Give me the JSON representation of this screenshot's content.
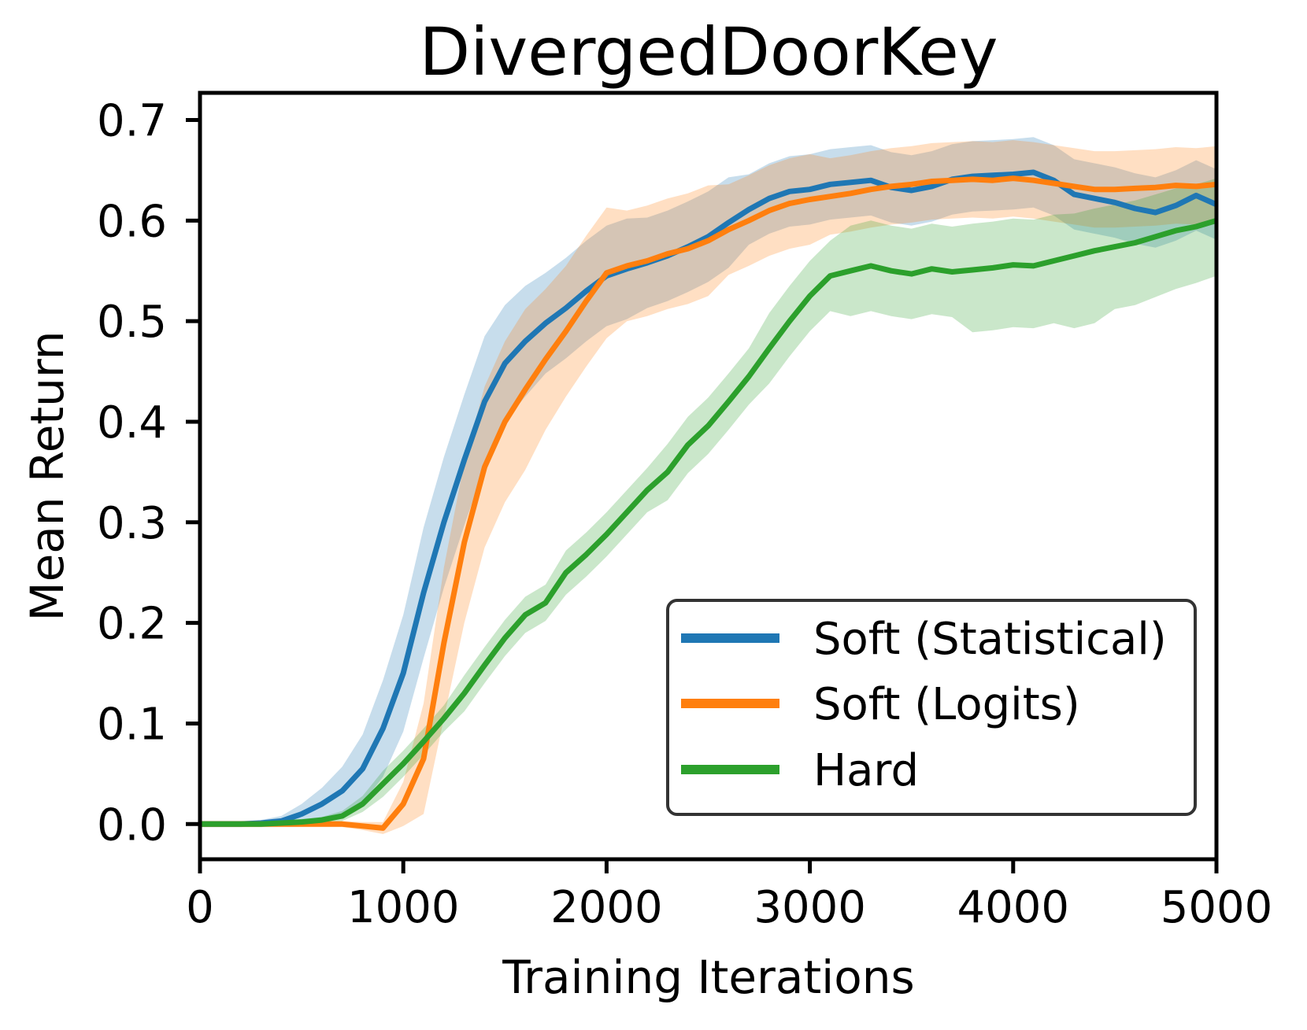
{
  "chart_data": {
    "type": "line",
    "title": "DivergedDoorKey",
    "xlabel": "Training Iterations",
    "ylabel": "Mean Return",
    "xlim": [
      0,
      5000
    ],
    "ylim": [
      -0.035,
      0.727
    ],
    "grid": false,
    "legend_position": "lower right",
    "band_alpha": 0.25,
    "xticks": {
      "values": [
        0,
        1000,
        2000,
        3000,
        4000,
        5000
      ],
      "labels": [
        "0",
        "1000",
        "2000",
        "3000",
        "4000",
        "5000"
      ]
    },
    "yticks": {
      "values": [
        0.0,
        0.1,
        0.2,
        0.3,
        0.4,
        0.5,
        0.6,
        0.7
      ],
      "labels": [
        "0.0",
        "0.1",
        "0.2",
        "0.3",
        "0.4",
        "0.5",
        "0.6",
        "0.7"
      ]
    },
    "x": [
      0,
      100,
      200,
      300,
      400,
      500,
      600,
      700,
      800,
      900,
      1000,
      1100,
      1200,
      1300,
      1400,
      1500,
      1600,
      1700,
      1800,
      1900,
      2000,
      2100,
      2200,
      2300,
      2400,
      2500,
      2600,
      2700,
      2800,
      2900,
      3000,
      3100,
      3200,
      3300,
      3400,
      3500,
      3600,
      3700,
      3800,
      3900,
      4000,
      4100,
      4200,
      4300,
      4400,
      4500,
      4600,
      4700,
      4800,
      4900,
      5000
    ],
    "series": [
      {
        "name": "Soft (Statistical)",
        "color": "#1f77b4",
        "values": [
          0.0,
          0.0,
          0.0,
          0.001,
          0.003,
          0.01,
          0.02,
          0.033,
          0.055,
          0.095,
          0.15,
          0.23,
          0.3,
          0.362,
          0.42,
          0.458,
          0.48,
          0.498,
          0.513,
          0.53,
          0.545,
          0.552,
          0.558,
          0.565,
          0.574,
          0.584,
          0.598,
          0.611,
          0.622,
          0.629,
          0.631,
          0.636,
          0.638,
          0.64,
          0.633,
          0.63,
          0.634,
          0.641,
          0.644,
          0.645,
          0.646,
          0.648,
          0.64,
          0.626,
          0.622,
          0.618,
          0.612,
          0.608,
          0.615,
          0.625,
          0.616
        ],
        "band_lower": [
          -0.003,
          -0.003,
          -0.003,
          -0.002,
          -0.002,
          0.0,
          0.004,
          0.009,
          0.021,
          0.047,
          0.092,
          0.165,
          0.235,
          0.297,
          0.355,
          0.4,
          0.425,
          0.448,
          0.463,
          0.48,
          0.495,
          0.502,
          0.513,
          0.52,
          0.529,
          0.539,
          0.553,
          0.576,
          0.587,
          0.594,
          0.596,
          0.601,
          0.603,
          0.605,
          0.598,
          0.595,
          0.599,
          0.606,
          0.609,
          0.61,
          0.611,
          0.613,
          0.605,
          0.591,
          0.587,
          0.583,
          0.577,
          0.573,
          0.58,
          0.59,
          0.581
        ],
        "band_upper": [
          0.003,
          0.003,
          0.003,
          0.004,
          0.008,
          0.02,
          0.036,
          0.057,
          0.089,
          0.143,
          0.208,
          0.295,
          0.365,
          0.427,
          0.485,
          0.516,
          0.535,
          0.548,
          0.563,
          0.58,
          0.595,
          0.602,
          0.603,
          0.61,
          0.619,
          0.629,
          0.643,
          0.646,
          0.657,
          0.664,
          0.666,
          0.671,
          0.673,
          0.675,
          0.668,
          0.665,
          0.669,
          0.676,
          0.679,
          0.68,
          0.681,
          0.683,
          0.675,
          0.661,
          0.657,
          0.653,
          0.647,
          0.643,
          0.65,
          0.66,
          0.651
        ]
      },
      {
        "name": "Soft (Logits)",
        "color": "#ff7f0e",
        "values": [
          0.0,
          0.0,
          0.0,
          0.0,
          0.0,
          0.0,
          0.0,
          0.0,
          -0.002,
          -0.004,
          0.02,
          0.065,
          0.18,
          0.28,
          0.355,
          0.4,
          0.432,
          0.462,
          0.49,
          0.52,
          0.548,
          0.555,
          0.56,
          0.567,
          0.572,
          0.58,
          0.591,
          0.6,
          0.61,
          0.617,
          0.621,
          0.624,
          0.627,
          0.631,
          0.634,
          0.636,
          0.639,
          0.64,
          0.641,
          0.64,
          0.642,
          0.64,
          0.637,
          0.634,
          0.631,
          0.631,
          0.632,
          0.633,
          0.635,
          0.634,
          0.636
        ],
        "band_lower": [
          -0.003,
          -0.003,
          -0.003,
          -0.003,
          -0.003,
          -0.003,
          -0.003,
          -0.003,
          -0.006,
          -0.01,
          -0.002,
          0.01,
          0.105,
          0.2,
          0.275,
          0.32,
          0.352,
          0.392,
          0.425,
          0.455,
          0.483,
          0.5,
          0.505,
          0.512,
          0.517,
          0.525,
          0.546,
          0.555,
          0.565,
          0.572,
          0.576,
          0.586,
          0.589,
          0.593,
          0.596,
          0.598,
          0.601,
          0.602,
          0.603,
          0.602,
          0.604,
          0.602,
          0.599,
          0.596,
          0.593,
          0.593,
          0.594,
          0.595,
          0.597,
          0.596,
          0.598
        ],
        "band_upper": [
          0.003,
          0.003,
          0.003,
          0.003,
          0.003,
          0.003,
          0.003,
          0.003,
          0.002,
          0.002,
          0.042,
          0.12,
          0.255,
          0.36,
          0.435,
          0.48,
          0.512,
          0.532,
          0.555,
          0.585,
          0.613,
          0.61,
          0.615,
          0.622,
          0.627,
          0.635,
          0.636,
          0.645,
          0.655,
          0.662,
          0.666,
          0.662,
          0.665,
          0.669,
          0.672,
          0.674,
          0.677,
          0.678,
          0.679,
          0.678,
          0.68,
          0.678,
          0.675,
          0.672,
          0.669,
          0.669,
          0.67,
          0.671,
          0.673,
          0.672,
          0.674
        ]
      },
      {
        "name": "Hard",
        "color": "#2ca02c",
        "values": [
          0.0,
          0.0,
          0.0,
          0.0,
          0.001,
          0.002,
          0.004,
          0.008,
          0.02,
          0.04,
          0.06,
          0.082,
          0.105,
          0.13,
          0.158,
          0.185,
          0.208,
          0.22,
          0.25,
          0.268,
          0.288,
          0.31,
          0.332,
          0.35,
          0.377,
          0.396,
          0.42,
          0.445,
          0.473,
          0.5,
          0.525,
          0.545,
          0.55,
          0.555,
          0.55,
          0.547,
          0.552,
          0.549,
          0.551,
          0.553,
          0.556,
          0.555,
          0.56,
          0.565,
          0.57,
          0.574,
          0.578,
          0.584,
          0.59,
          0.594,
          0.6
        ],
        "band_lower": [
          -0.003,
          -0.003,
          -0.003,
          -0.003,
          -0.002,
          -0.001,
          0.001,
          0.003,
          0.012,
          0.027,
          0.047,
          0.069,
          0.092,
          0.112,
          0.14,
          0.167,
          0.19,
          0.202,
          0.228,
          0.246,
          0.266,
          0.288,
          0.31,
          0.322,
          0.349,
          0.368,
          0.392,
          0.417,
          0.438,
          0.465,
          0.49,
          0.51,
          0.505,
          0.51,
          0.505,
          0.502,
          0.507,
          0.504,
          0.489,
          0.491,
          0.494,
          0.493,
          0.498,
          0.493,
          0.498,
          0.512,
          0.516,
          0.524,
          0.532,
          0.538,
          0.545
        ],
        "band_upper": [
          0.003,
          0.003,
          0.003,
          0.003,
          0.004,
          0.005,
          0.007,
          0.013,
          0.028,
          0.053,
          0.073,
          0.095,
          0.118,
          0.148,
          0.176,
          0.203,
          0.226,
          0.238,
          0.272,
          0.29,
          0.31,
          0.332,
          0.354,
          0.378,
          0.405,
          0.424,
          0.448,
          0.473,
          0.508,
          0.535,
          0.56,
          0.58,
          0.595,
          0.6,
          0.595,
          0.592,
          0.597,
          0.594,
          0.597,
          0.599,
          0.602,
          0.601,
          0.606,
          0.607,
          0.612,
          0.616,
          0.62,
          0.626,
          0.632,
          0.636,
          0.642
        ]
      }
    ],
    "legend_labels": [
      "Soft (Statistical)",
      "Soft (Logits)",
      "Hard"
    ]
  },
  "style_colors": {
    "spine": "#000000",
    "legend_border": "#333333",
    "background": "#ffffff"
  }
}
